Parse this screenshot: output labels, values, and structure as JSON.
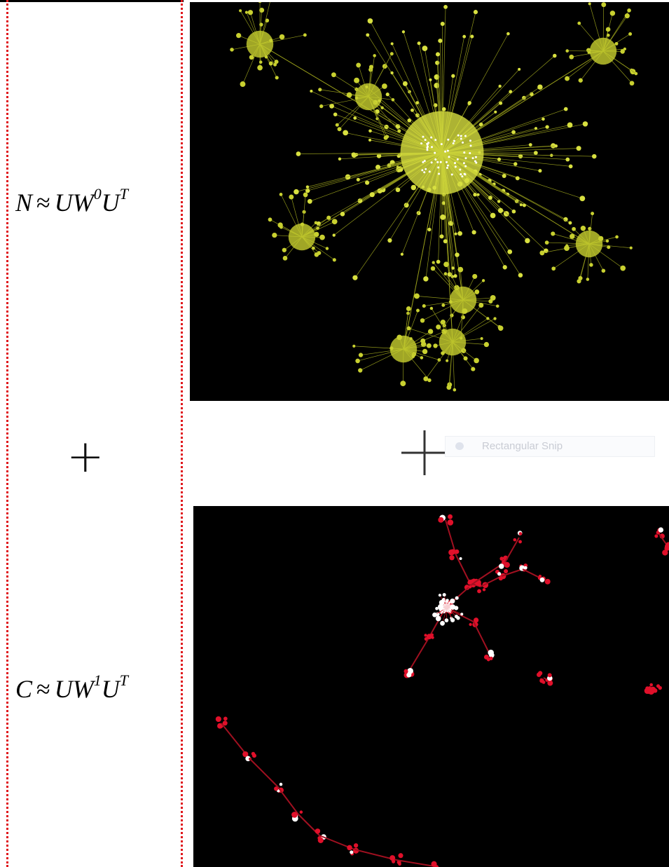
{
  "equation_top": {
    "lhs": "N",
    "rel": "≈",
    "base1": "UW",
    "sup1": "0",
    "base2": "U",
    "sup2": "T"
  },
  "operator": "+",
  "equation_bottom": {
    "lhs": "C",
    "rel": "≈",
    "base1": "UW",
    "sup1": "1",
    "base2": "U",
    "sup2": "T"
  },
  "snip_tooltip": "Rectangular Snip"
}
